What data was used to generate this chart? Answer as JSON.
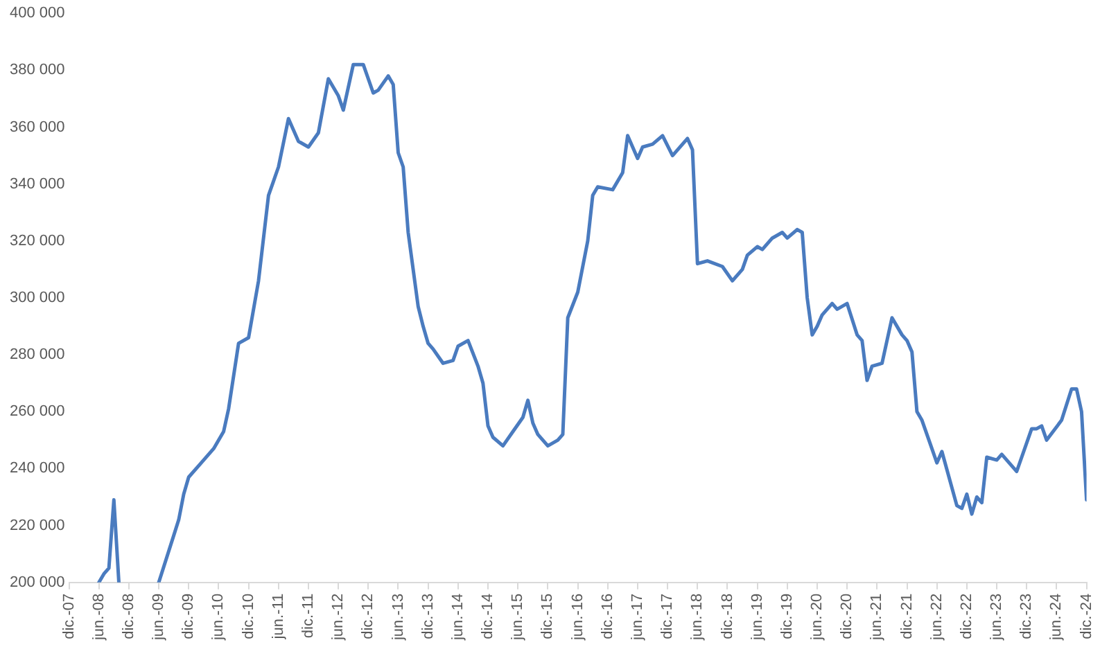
{
  "chart_data": {
    "type": "line",
    "xlim": [
      "2007-12",
      "2024-12"
    ],
    "xticks": [
      {
        "value": "2007-12",
        "label": "dic.-07"
      },
      {
        "value": "2008-06",
        "label": "jun.-08"
      },
      {
        "value": "2008-12",
        "label": "dic.-08"
      },
      {
        "value": "2009-06",
        "label": "jun.-09"
      },
      {
        "value": "2009-12",
        "label": "dic.-09"
      },
      {
        "value": "2010-06",
        "label": "jun.-10"
      },
      {
        "value": "2010-12",
        "label": "dic.-10"
      },
      {
        "value": "2011-06",
        "label": "jun.-11"
      },
      {
        "value": "2011-12",
        "label": "dic.-11"
      },
      {
        "value": "2012-06",
        "label": "jun.-12"
      },
      {
        "value": "2012-12",
        "label": "dic.-12"
      },
      {
        "value": "2013-06",
        "label": "jun.-13"
      },
      {
        "value": "2013-12",
        "label": "dic.-13"
      },
      {
        "value": "2014-06",
        "label": "jun.-14"
      },
      {
        "value": "2014-12",
        "label": "dic.-14"
      },
      {
        "value": "2015-06",
        "label": "jun.-15"
      },
      {
        "value": "2015-12",
        "label": "dic.-15"
      },
      {
        "value": "2016-06",
        "label": "jun.-16"
      },
      {
        "value": "2016-12",
        "label": "dic.-16"
      },
      {
        "value": "2017-06",
        "label": "jun.-17"
      },
      {
        "value": "2017-12",
        "label": "dic.-17"
      },
      {
        "value": "2018-06",
        "label": "jun.-18"
      },
      {
        "value": "2018-12",
        "label": "dic.-18"
      },
      {
        "value": "2019-06",
        "label": "jun.-19"
      },
      {
        "value": "2019-12",
        "label": "dic.-19"
      },
      {
        "value": "2020-06",
        "label": "jun.-20"
      },
      {
        "value": "2020-12",
        "label": "dic.-20"
      },
      {
        "value": "2021-06",
        "label": "jun.-21"
      },
      {
        "value": "2021-12",
        "label": "dic.-21"
      },
      {
        "value": "2022-06",
        "label": "jun.-22"
      },
      {
        "value": "2022-12",
        "label": "dic.-22"
      },
      {
        "value": "2023-06",
        "label": "jun.-23"
      },
      {
        "value": "2023-12",
        "label": "dic.-23"
      },
      {
        "value": "2024-06",
        "label": "jun.-24"
      },
      {
        "value": "2024-12",
        "label": "dic.-24"
      }
    ],
    "ylim": [
      200000,
      400000
    ],
    "yticks": [
      {
        "value": 200000,
        "label": "200 000"
      },
      {
        "value": 220000,
        "label": "220 000"
      },
      {
        "value": 240000,
        "label": "240 000"
      },
      {
        "value": 260000,
        "label": "260 000"
      },
      {
        "value": 280000,
        "label": "280 000"
      },
      {
        "value": 300000,
        "label": "300 000"
      },
      {
        "value": 320000,
        "label": "320 000"
      },
      {
        "value": 340000,
        "label": "340 000"
      },
      {
        "value": 360000,
        "label": "360 000"
      },
      {
        "value": 380000,
        "label": "380 000"
      },
      {
        "value": 400000,
        "label": "400 000"
      }
    ],
    "grid": false,
    "legend": false,
    "marker": "none",
    "line_style": "solid",
    "series": [
      {
        "color": "#4a7bbf",
        "x": [
          "2008-06",
          "2008-07",
          "2008-08",
          "2008-09",
          "2008-10",
          "2009-01",
          "2009-06",
          "2009-10",
          "2009-11",
          "2009-12",
          "2010-02",
          "2010-05",
          "2010-07",
          "2010-08",
          "2010-10",
          "2010-12",
          "2011-02",
          "2011-04",
          "2011-05",
          "2011-06",
          "2011-08",
          "2011-10",
          "2011-12",
          "2012-02",
          "2012-04",
          "2012-06",
          "2012-07",
          "2012-09",
          "2012-11",
          "2013-01",
          "2013-02",
          "2013-04",
          "2013-05",
          "2013-06",
          "2013-07",
          "2013-08",
          "2013-09",
          "2013-10",
          "2013-11",
          "2013-12",
          "2014-01",
          "2014-03",
          "2014-05",
          "2014-06",
          "2014-08",
          "2014-10",
          "2014-11",
          "2014-12",
          "2015-01",
          "2015-03",
          "2015-05",
          "2015-07",
          "2015-08",
          "2015-09",
          "2015-10",
          "2015-12",
          "2016-02",
          "2016-03",
          "2016-04",
          "2016-06",
          "2016-08",
          "2016-09",
          "2016-10",
          "2017-01",
          "2017-03",
          "2017-04",
          "2017-06",
          "2017-07",
          "2017-09",
          "2017-11",
          "2018-01",
          "2018-04",
          "2018-05",
          "2018-06",
          "2018-08",
          "2018-11",
          "2019-01",
          "2019-03",
          "2019-04",
          "2019-06",
          "2019-07",
          "2019-09",
          "2019-11",
          "2019-12",
          "2020-02",
          "2020-03",
          "2020-04",
          "2020-05",
          "2020-06",
          "2020-07",
          "2020-09",
          "2020-10",
          "2020-12",
          "2021-02",
          "2021-03",
          "2021-04",
          "2021-05",
          "2021-07",
          "2021-09",
          "2021-11",
          "2021-12",
          "2022-01",
          "2022-02",
          "2022-03",
          "2022-05",
          "2022-06",
          "2022-07",
          "2022-10",
          "2022-11",
          "2022-12",
          "2023-01",
          "2023-02",
          "2023-03",
          "2023-04",
          "2023-06",
          "2023-07",
          "2023-10",
          "2024-01",
          "2024-02",
          "2024-03",
          "2024-04",
          "2024-07",
          "2024-09",
          "2024-10",
          "2024-11",
          "2024-12"
        ],
        "values": [
          200000,
          203000,
          205000,
          229000,
          200000,
          null,
          200000,
          222000,
          231000,
          237000,
          241000,
          247000,
          253000,
          261000,
          284000,
          286000,
          306000,
          336000,
          341000,
          346000,
          363000,
          355000,
          353000,
          358000,
          377000,
          371000,
          366000,
          382000,
          382000,
          372000,
          373000,
          378000,
          375000,
          351000,
          346000,
          323000,
          310000,
          297000,
          290000,
          284000,
          282000,
          277000,
          278000,
          283000,
          285000,
          276000,
          270000,
          255000,
          251000,
          248000,
          253000,
          258000,
          264000,
          256000,
          252000,
          248000,
          250000,
          252000,
          293000,
          302000,
          320000,
          336000,
          339000,
          338000,
          344000,
          357000,
          349000,
          353000,
          354000,
          357000,
          350000,
          356000,
          352000,
          312000,
          313000,
          311000,
          306000,
          310000,
          315000,
          318000,
          317000,
          321000,
          323000,
          321000,
          324000,
          323000,
          300000,
          287000,
          290000,
          294000,
          298000,
          296000,
          298000,
          287000,
          285000,
          271000,
          276000,
          277000,
          293000,
          287000,
          285000,
          281000,
          260000,
          257000,
          247000,
          242000,
          246000,
          227000,
          226000,
          231000,
          224000,
          230000,
          228000,
          244000,
          243000,
          245000,
          239000,
          254000,
          254000,
          255000,
          250000,
          257000,
          268000,
          268000,
          260000,
          229000
        ]
      }
    ]
  }
}
